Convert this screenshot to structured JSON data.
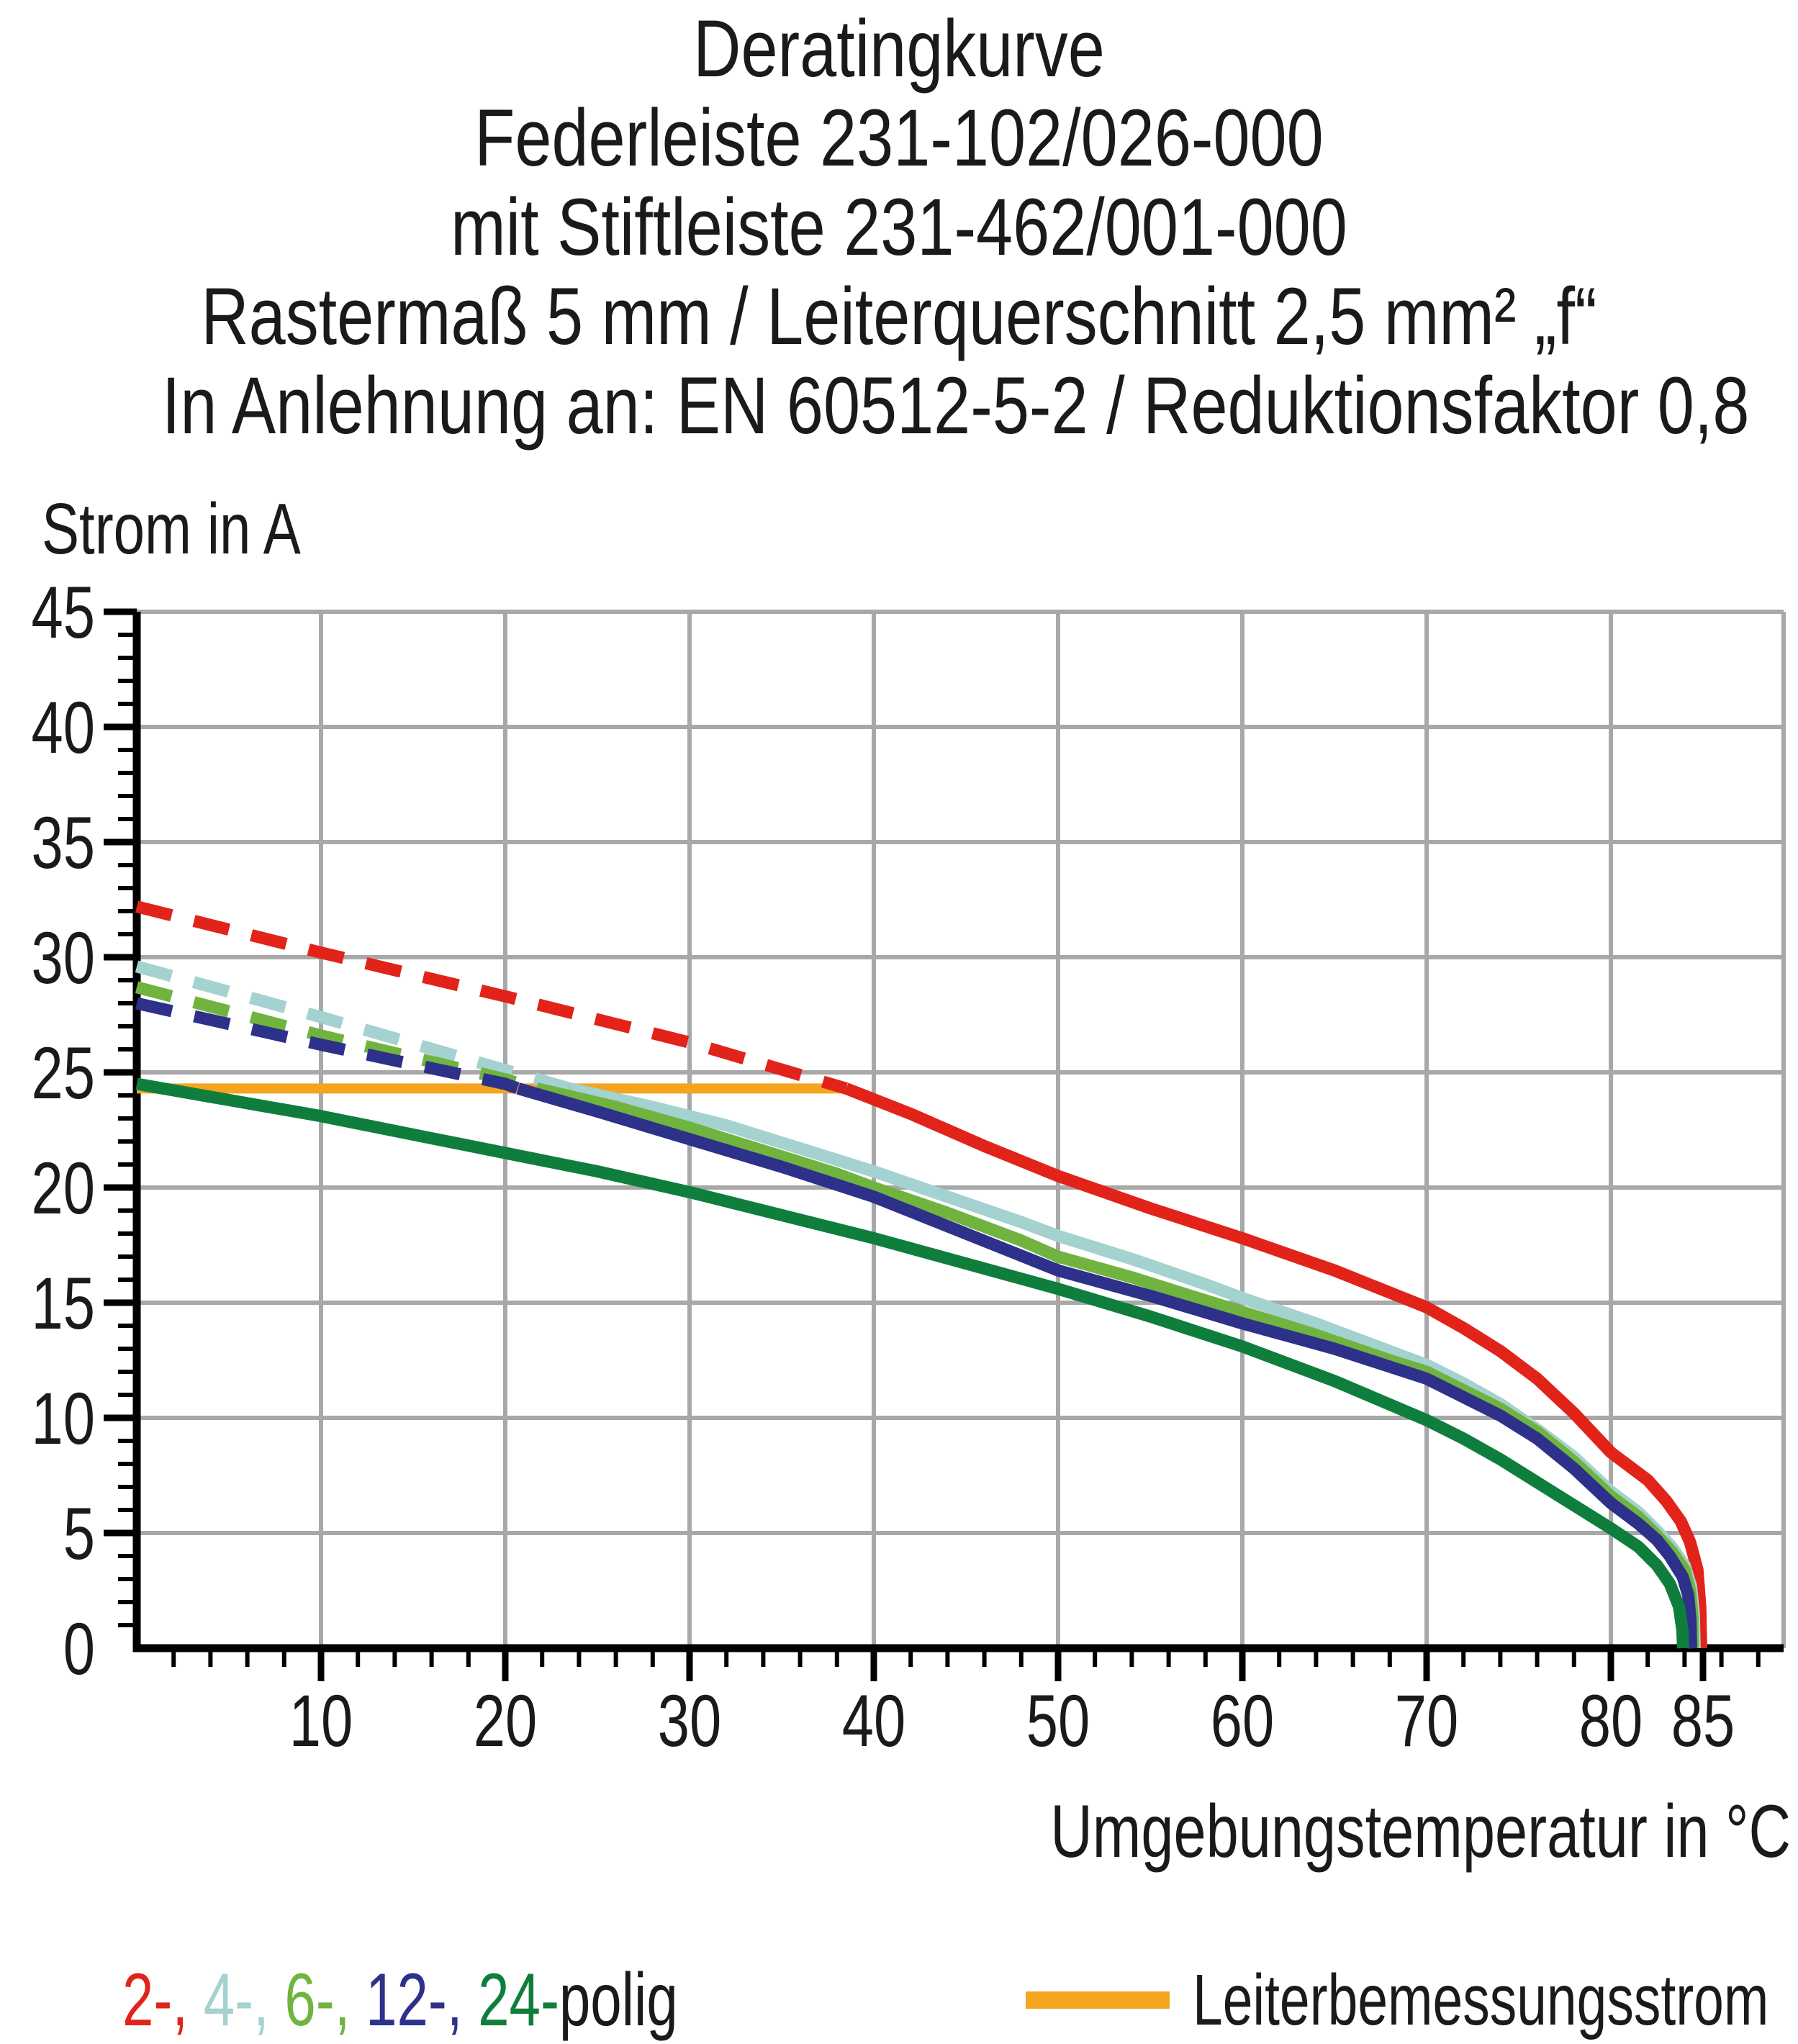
{
  "title": {
    "lines": [
      "Deratingkurve",
      "Federleiste 231-102/026-000",
      "mit Stiftleiste 231-462/001-000",
      "Rastermaß 5 mm / Leiterquerschnitt 2,5 mm² „f“",
      "In Anlehnung an: EN 60512-5-2 / Reduktionsfaktor 0,8"
    ]
  },
  "chart": {
    "y_axis_title": "Strom in A",
    "x_axis_title": "Umgebungstemperatur in °C"
  },
  "chart_data": {
    "type": "line",
    "title": "Deratingkurve Federleiste 231-102/026-000 mit Stiftleiste 231-462/001-000",
    "xlabel": "Umgebungstemperatur in °C",
    "ylabel": "Strom in A",
    "xlim": [
      0,
      89.4
    ],
    "ylim": [
      0,
      45
    ],
    "grid": true,
    "legend_position": "bottom",
    "x_ticks": [
      10,
      20,
      30,
      40,
      50,
      60,
      70,
      80,
      85
    ],
    "x_gridlines": [
      10,
      20,
      30,
      40,
      50,
      60,
      70,
      80
    ],
    "x_minor_tick_step": 2,
    "y_ticks": [
      0,
      5,
      10,
      15,
      20,
      25,
      30,
      35,
      40,
      45
    ],
    "y_gridlines": [
      5,
      10,
      15,
      20,
      25,
      30,
      35,
      40,
      45
    ],
    "y_minor_tick_step": 1,
    "colors": {
      "grid": "#a8a8a8",
      "axis": "#000000",
      "text": "#1a1a1a"
    },
    "rated_line": {
      "name": "Leiterbemessungsstrom",
      "color": "#f5a41f",
      "value": 24.3,
      "x_range": [
        0,
        38.5
      ]
    },
    "series": [
      {
        "name": "2-polig",
        "color": "#e2231a",
        "segments": [
          {
            "style": "dashed",
            "points": [
              [
                0,
                32.2
              ],
              [
                10,
                30.2
              ],
              [
                20,
                28.3
              ],
              [
                30,
                26.3
              ],
              [
                38.5,
                24.3
              ]
            ]
          },
          {
            "style": "solid",
            "points": [
              [
                38.5,
                24.3
              ],
              [
                42,
                23.2
              ],
              [
                46,
                21.8
              ],
              [
                50,
                20.5
              ],
              [
                55,
                19.1
              ],
              [
                60,
                17.8
              ],
              [
                65,
                16.4
              ],
              [
                70,
                14.8
              ],
              [
                72,
                13.9
              ],
              [
                74,
                12.9
              ],
              [
                76,
                11.7
              ],
              [
                78,
                10.2
              ],
              [
                80,
                8.5
              ],
              [
                82,
                7.3
              ],
              [
                83,
                6.4
              ],
              [
                83.8,
                5.5
              ],
              [
                84.3,
                4.6
              ],
              [
                84.7,
                3.4
              ],
              [
                84.85,
                1.8
              ],
              [
                84.9,
                0
              ]
            ]
          }
        ]
      },
      {
        "name": "4-polig",
        "color": "#a3d2d0",
        "segments": [
          {
            "style": "dashed",
            "points": [
              [
                0,
                29.6
              ],
              [
                10,
                27.4
              ],
              [
                20,
                25.1
              ],
              [
                23.5,
                24.3
              ]
            ]
          },
          {
            "style": "solid",
            "points": [
              [
                23.5,
                24.3
              ],
              [
                28,
                23.5
              ],
              [
                32,
                22.7
              ],
              [
                36,
                21.7
              ],
              [
                40,
                20.7
              ],
              [
                44,
                19.6
              ],
              [
                48,
                18.5
              ],
              [
                50,
                17.9
              ],
              [
                54,
                16.9
              ],
              [
                58,
                15.8
              ],
              [
                60,
                15.2
              ],
              [
                64,
                14.1
              ],
              [
                68,
                12.9
              ],
              [
                70,
                12.3
              ],
              [
                72,
                11.5
              ],
              [
                74,
                10.6
              ],
              [
                76,
                9.5
              ],
              [
                78,
                8.3
              ],
              [
                80,
                6.8
              ],
              [
                81.5,
                5.9
              ],
              [
                82.5,
                5.1
              ],
              [
                83.3,
                4.4
              ],
              [
                84,
                3.6
              ],
              [
                84.35,
                2.7
              ],
              [
                84.5,
                1.5
              ],
              [
                84.55,
                0
              ]
            ]
          }
        ]
      },
      {
        "name": "6-polig",
        "color": "#70b43f",
        "segments": [
          {
            "style": "dashed",
            "points": [
              [
                0,
                28.7
              ],
              [
                10,
                26.6
              ],
              [
                20,
                24.7
              ],
              [
                21.7,
                24.3
              ]
            ]
          },
          {
            "style": "solid",
            "points": [
              [
                21.7,
                24.3
              ],
              [
                26,
                23.5
              ],
              [
                30,
                22.6
              ],
              [
                34,
                21.6
              ],
              [
                38,
                20.6
              ],
              [
                40,
                20.0
              ],
              [
                44,
                18.9
              ],
              [
                48,
                17.7
              ],
              [
                50,
                17.0
              ],
              [
                54,
                16.1
              ],
              [
                58,
                15.1
              ],
              [
                60,
                14.6
              ],
              [
                64,
                13.6
              ],
              [
                68,
                12.5
              ],
              [
                70,
                12.0
              ],
              [
                72,
                11.2
              ],
              [
                74,
                10.4
              ],
              [
                76,
                9.4
              ],
              [
                78,
                8.1
              ],
              [
                80,
                6.6
              ],
              [
                81.5,
                5.7
              ],
              [
                82.5,
                4.9
              ],
              [
                83.3,
                4.2
              ],
              [
                84,
                3.4
              ],
              [
                84.3,
                2.5
              ],
              [
                84.42,
                1.4
              ],
              [
                84.45,
                0
              ]
            ]
          }
        ]
      },
      {
        "name": "12-polig",
        "color": "#2d3189",
        "segments": [
          {
            "style": "dashed",
            "points": [
              [
                0,
                28.0
              ],
              [
                10,
                26.2
              ],
              [
                20,
                24.5
              ],
              [
                20.7,
                24.3
              ]
            ]
          },
          {
            "style": "solid",
            "points": [
              [
                20.7,
                24.3
              ],
              [
                25,
                23.3
              ],
              [
                30,
                22.1
              ],
              [
                35,
                20.9
              ],
              [
                40,
                19.6
              ],
              [
                45,
                18.0
              ],
              [
                50,
                16.4
              ],
              [
                55,
                15.3
              ],
              [
                60,
                14.1
              ],
              [
                65,
                13.0
              ],
              [
                70,
                11.7
              ],
              [
                72,
                10.9
              ],
              [
                74,
                10.1
              ],
              [
                76,
                9.1
              ],
              [
                78,
                7.8
              ],
              [
                80,
                6.3
              ],
              [
                81.5,
                5.4
              ],
              [
                82.5,
                4.7
              ],
              [
                83.2,
                4.0
              ],
              [
                83.9,
                3.1
              ],
              [
                84.2,
                2.3
              ],
              [
                84.32,
                1.2
              ],
              [
                84.35,
                0
              ]
            ]
          }
        ]
      },
      {
        "name": "24-polig",
        "color": "#0f7e3c",
        "segments": [
          {
            "style": "solid",
            "points": [
              [
                0,
                24.5
              ],
              [
                5,
                23.8
              ],
              [
                10,
                23.1
              ],
              [
                15,
                22.3
              ],
              [
                20,
                21.5
              ],
              [
                25,
                20.7
              ],
              [
                30,
                19.8
              ],
              [
                35,
                18.8
              ],
              [
                40,
                17.8
              ],
              [
                45,
                16.7
              ],
              [
                50,
                15.6
              ],
              [
                55,
                14.4
              ],
              [
                60,
                13.1
              ],
              [
                65,
                11.6
              ],
              [
                70,
                9.9
              ],
              [
                72,
                9.1
              ],
              [
                74,
                8.2
              ],
              [
                76,
                7.2
              ],
              [
                78,
                6.2
              ],
              [
                80,
                5.2
              ],
              [
                81.5,
                4.4
              ],
              [
                82.5,
                3.6
              ],
              [
                83.2,
                2.8
              ],
              [
                83.7,
                1.8
              ],
              [
                83.88,
                0.8
              ],
              [
                83.92,
                0
              ]
            ]
          }
        ]
      }
    ]
  },
  "legend": {
    "poles": {
      "parts": [
        {
          "text": "2-, ",
          "color": "#e2231a"
        },
        {
          "text": "4-, ",
          "color": "#a3d2d0"
        },
        {
          "text": "6-, ",
          "color": "#70b43f"
        },
        {
          "text": "12-, ",
          "color": "#2d3189"
        },
        {
          "text": "24-",
          "color": "#0f7e3c"
        },
        {
          "text": "polig",
          "color": "#1a1a1a"
        }
      ]
    },
    "rated": {
      "label": "Leiterbemessungsstrom",
      "color": "#f5a41f"
    }
  }
}
